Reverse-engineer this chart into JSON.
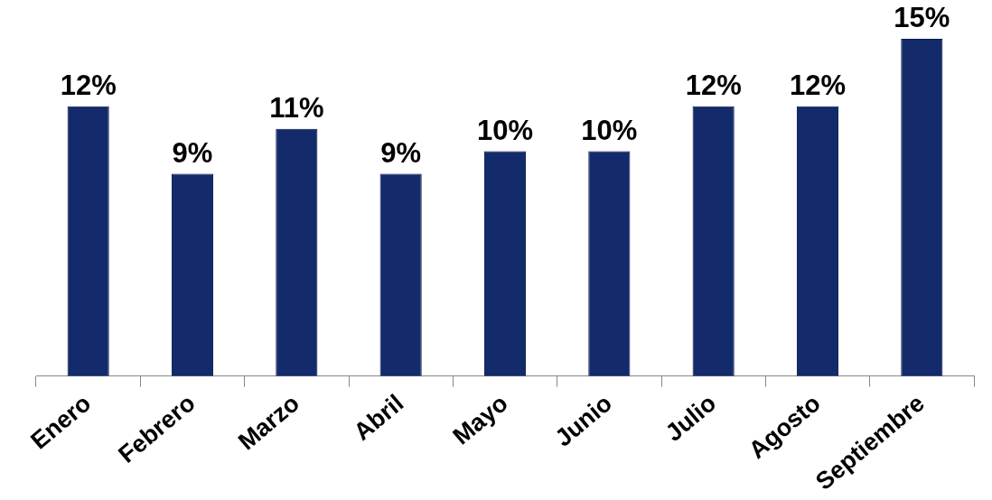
{
  "chart_data": {
    "type": "bar",
    "categories": [
      "Enero",
      "Febrero",
      "Marzo",
      "Abril",
      "Mayo",
      "Junio",
      "Julio",
      "Agosto",
      "Septiembre"
    ],
    "values": [
      12,
      9,
      11,
      9,
      10,
      10,
      12,
      12,
      15
    ],
    "value_labels": [
      "12%",
      "9%",
      "11%",
      "9%",
      "10%",
      "10%",
      "12%",
      "12%",
      "15%"
    ],
    "color": "#132a6b",
    "grid": false,
    "legend": false
  }
}
